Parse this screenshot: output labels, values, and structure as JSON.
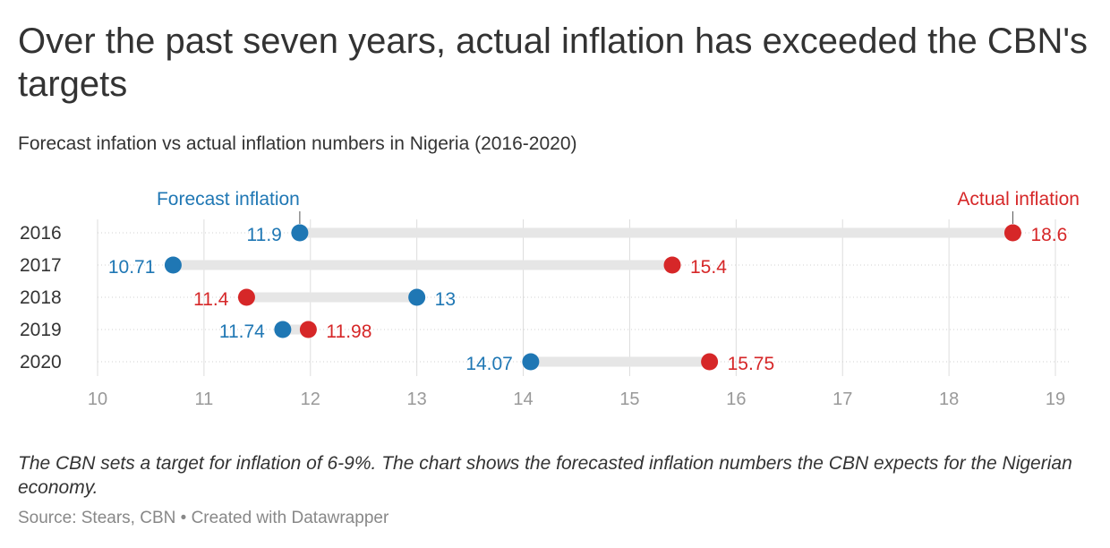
{
  "title": "Over the past seven years, actual inflation has exceeded the CBN's targets",
  "subtitle": "Forecast infation vs actual inflation numbers in Nigeria (2016-2020)",
  "notes": "The CBN sets a target for inflation of 6-9%. The chart shows the forecasted inflation numbers the CBN expects for the Nigerian economy.",
  "footer": {
    "source": "Source: Stears, CBN",
    "separator": " • ",
    "credit": "Created with Datawrapper"
  },
  "colors": {
    "forecast": "#1f77b4",
    "actual": "#d62728",
    "range_bar": "#e6e6e6",
    "grid": "#dddddd",
    "tick_text": "#999999",
    "label_text": "#333333"
  },
  "chart_data": {
    "type": "range-dot",
    "categories": [
      "2016",
      "2017",
      "2018",
      "2019",
      "2020"
    ],
    "series": [
      {
        "name": "Forecast inflation",
        "values": [
          11.9,
          10.71,
          13,
          11.74,
          14.07
        ],
        "labels": [
          "11.9",
          "10.71",
          "13",
          "11.74",
          "14.07"
        ]
      },
      {
        "name": "Actual inflation",
        "values": [
          18.6,
          15.4,
          11.4,
          11.98,
          15.75
        ],
        "labels": [
          "18.6",
          "15.4",
          "11.4",
          "11.98",
          "15.75"
        ]
      }
    ],
    "xlim": [
      10,
      19
    ],
    "xticks": [
      "10",
      "11",
      "12",
      "13",
      "14",
      "15",
      "16",
      "17",
      "18",
      "19"
    ],
    "grid": true,
    "legend": "inline-top"
  }
}
